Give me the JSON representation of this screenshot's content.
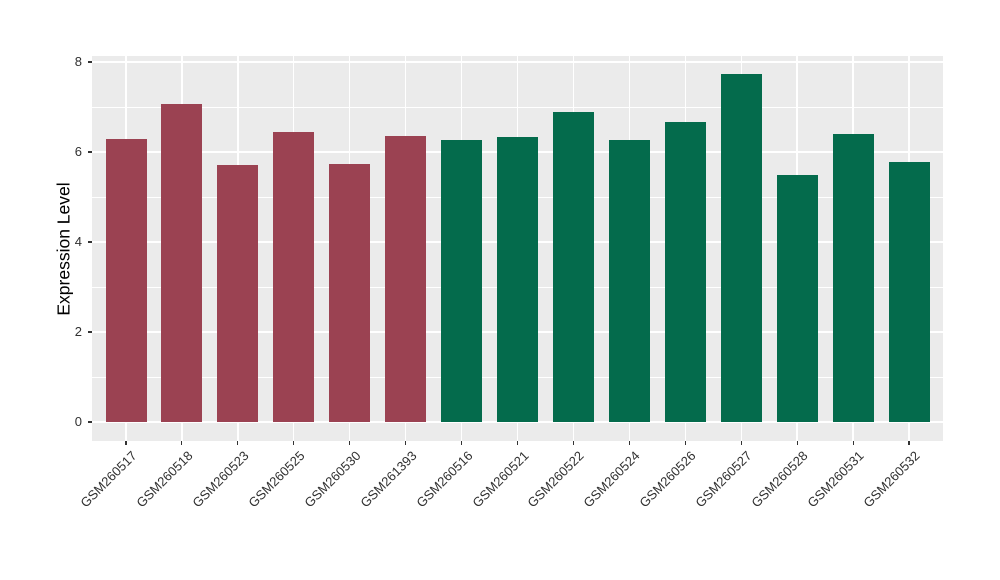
{
  "figure": {
    "title": "",
    "panel_bg": "#EBEBEB",
    "grid_color": "#FFFFFF",
    "axis_text_color": "#303030",
    "axis_title_color": "#000000"
  },
  "chart_data": {
    "type": "bar",
    "title": "",
    "xlabel": "",
    "ylabel": "Expression Level",
    "ylim": [
      0,
      8.14
    ],
    "yticks": [
      0,
      2,
      4,
      6,
      8
    ],
    "yticks_minor": [
      1,
      3,
      5,
      7
    ],
    "grid": true,
    "legend": false,
    "categories": [
      "GSM260517",
      "GSM260518",
      "GSM260523",
      "GSM260525",
      "GSM260530",
      "GSM261393",
      "GSM260516",
      "GSM260521",
      "GSM260522",
      "GSM260524",
      "GSM260526",
      "GSM260527",
      "GSM260528",
      "GSM260531",
      "GSM260532"
    ],
    "values": [
      6.29,
      7.07,
      5.72,
      6.44,
      5.73,
      6.36,
      6.27,
      6.34,
      6.88,
      6.27,
      6.66,
      7.73,
      5.49,
      6.4,
      5.77
    ],
    "bar_colors": [
      "#9B4252",
      "#9B4252",
      "#9B4252",
      "#9B4252",
      "#9B4252",
      "#9B4252",
      "#046B4C",
      "#046B4C",
      "#046B4C",
      "#046B4C",
      "#046B4C",
      "#046B4C",
      "#046B4C",
      "#046B4C",
      "#046B4C"
    ],
    "palette": {
      "group_maroon": "#9B4252",
      "group_green": "#046B4C"
    }
  }
}
